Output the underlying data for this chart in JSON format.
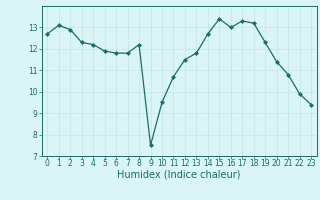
{
  "x": [
    0,
    1,
    2,
    3,
    4,
    5,
    6,
    7,
    8,
    9,
    10,
    11,
    12,
    13,
    14,
    15,
    16,
    17,
    18,
    19,
    20,
    21,
    22,
    23
  ],
  "y": [
    12.7,
    13.1,
    12.9,
    12.3,
    12.2,
    11.9,
    11.8,
    11.8,
    12.2,
    7.5,
    9.5,
    10.7,
    11.5,
    11.8,
    12.7,
    13.4,
    13.0,
    13.3,
    13.2,
    12.3,
    11.4,
    10.8,
    9.9,
    9.4
  ],
  "xlim": [
    -0.5,
    23.5
  ],
  "ylim": [
    7,
    14
  ],
  "yticks": [
    7,
    8,
    9,
    10,
    11,
    12,
    13
  ],
  "xticks": [
    0,
    1,
    2,
    3,
    4,
    5,
    6,
    7,
    8,
    9,
    10,
    11,
    12,
    13,
    14,
    15,
    16,
    17,
    18,
    19,
    20,
    21,
    22,
    23
  ],
  "xlabel": "Humidex (Indice chaleur)",
  "line_color": "#1a6b6b",
  "marker": "D",
  "marker_size": 2.0,
  "bg_color": "#d9f5f5",
  "grid_color": "#c8e8e8",
  "tick_fontsize": 5.5,
  "xlabel_fontsize": 7.0
}
